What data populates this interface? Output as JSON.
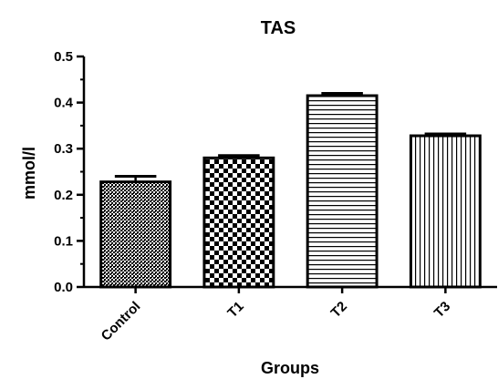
{
  "chart_data": {
    "type": "bar",
    "title": "TAS",
    "xlabel": "Groups",
    "ylabel": "mmol/l",
    "categories": [
      "Control",
      "T1",
      "T2",
      "T3"
    ],
    "values": [
      0.228,
      0.28,
      0.415,
      0.328
    ],
    "errors": [
      0.012,
      0.005,
      0.005,
      0.004
    ],
    "ylim": [
      0,
      0.5
    ],
    "yticks": [
      0.0,
      0.1,
      0.2,
      0.3,
      0.4,
      0.5
    ],
    "ytick_labels": [
      "0.0",
      "0.1",
      "0.2",
      "0.3",
      "0.4",
      "0.5"
    ],
    "grid": false,
    "legend": "none",
    "patterns": [
      "fine-crosshatch",
      "checkerboard",
      "horizontal-lines",
      "vertical-lines"
    ],
    "bar_color": "#000000",
    "background": "#ffffff"
  }
}
